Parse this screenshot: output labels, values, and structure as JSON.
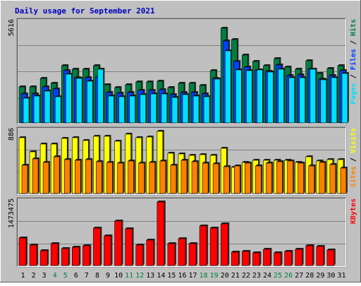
{
  "chart_data": {
    "type": "bar",
    "title": "Daily usage for September 2021",
    "categories": [
      "1",
      "2",
      "3",
      "4",
      "5",
      "6",
      "7",
      "8",
      "9",
      "10",
      "11",
      "12",
      "13",
      "14",
      "15",
      "16",
      "17",
      "18",
      "19",
      "20",
      "21",
      "22",
      "23",
      "24",
      "25",
      "26",
      "27",
      "28",
      "29",
      "30",
      "31"
    ],
    "weekend_days": [
      4,
      5,
      11,
      12,
      18,
      19,
      25,
      26
    ],
    "colors": {
      "hits": "#008040",
      "files": "#0040ff",
      "pages": "#00e0ff",
      "visits": "#ffff00",
      "sites": "#ff8000",
      "kbytes": "#ff0000",
      "title": "#0000c0",
      "weekend": "#008040",
      "weekday": "#000000",
      "plot_bg": "#c0c0c0",
      "frame_bg": "#c0c0c0"
    },
    "panels": [
      {
        "id": "hits-files-pages",
        "ymax_label": "5616",
        "ymax": 5616,
        "legend": [
          {
            "label": "Hits",
            "color": "#008040"
          },
          {
            "label": "Files",
            "color": "#0040ff"
          },
          {
            "label": "Pages",
            "color": "#00e0ff"
          }
        ],
        "series": [
          {
            "name": "Hits",
            "values": [
              2030,
              2030,
              2480,
              2230,
              3220,
              3010,
              3010,
              3190,
              2150,
              1990,
              2150,
              2280,
              2300,
              2320,
              1960,
              2210,
              2210,
              2080,
              2940,
              5290,
              4670,
              3790,
              3430,
              3190,
              3580,
              3140,
              3010,
              3490,
              2760,
              3060,
              3190
            ]
          },
          {
            "name": "Files",
            "values": [
              1640,
              1640,
              2020,
              1890,
              2930,
              2540,
              2540,
              2560,
              1700,
              1670,
              1700,
              1800,
              1820,
              1850,
              1590,
              1720,
              1720,
              1640,
              2480,
              4570,
              3440,
              3120,
              2930,
              2890,
              3250,
              2650,
              2700,
              3010,
              2460,
              2650,
              2910
            ]
          },
          {
            "name": "Pages",
            "values": [
              1370,
              1500,
              1790,
              1470,
              2710,
              2480,
              2330,
              3010,
              1490,
              1460,
              1520,
              1600,
              1630,
              1640,
              1420,
              1590,
              1520,
              1480,
              2440,
              4020,
              2980,
              2940,
              2950,
              2850,
              3020,
              2540,
              2540,
              3010,
              2410,
              2540,
              2760
            ]
          }
        ]
      },
      {
        "id": "visits-sites",
        "ymax_label": "886",
        "ymax": 886,
        "legend": [
          {
            "label": "Visits",
            "color": "#ffff00"
          },
          {
            "label": "Sites",
            "color": "#ff8000"
          }
        ],
        "series": [
          {
            "name": "Visits",
            "values": [
              800,
              590,
              700,
              700,
              790,
              800,
              760,
              813,
              813,
              750,
              850,
              800,
              810,
              886,
              570,
              560,
              540,
              550,
              540,
              640,
              370,
              440,
              470,
              470,
              470,
              470,
              440,
              520,
              460,
              480,
              480
            ]
          },
          {
            "name": "Sites",
            "values": [
              400,
              490,
              440,
              520,
              480,
              470,
              480,
              450,
              440,
              430,
              460,
              430,
              440,
              460,
              400,
              470,
              450,
              430,
              420,
              380,
              390,
              430,
              390,
              430,
              450,
              460,
              430,
              390,
              440,
              410,
              360
            ]
          }
        ]
      },
      {
        "id": "kbytes",
        "ymax_label": "1473475",
        "ymax": 1473475,
        "legend": [
          {
            "label": "KBytes",
            "color": "#ff0000"
          }
        ],
        "series": [
          {
            "name": "KBytes",
            "values": [
              645000,
              468000,
              343000,
              509000,
              397000,
              424000,
              465000,
              860000,
              680000,
              1032000,
              847000,
              475000,
              590000,
              1473475,
              514000,
              617000,
              500000,
              925000,
              870000,
              970000,
              305000,
              330000,
              302000,
              380000,
              290000,
              330000,
              380000,
              463000,
              440000,
              365000,
              0
            ]
          }
        ]
      }
    ]
  }
}
